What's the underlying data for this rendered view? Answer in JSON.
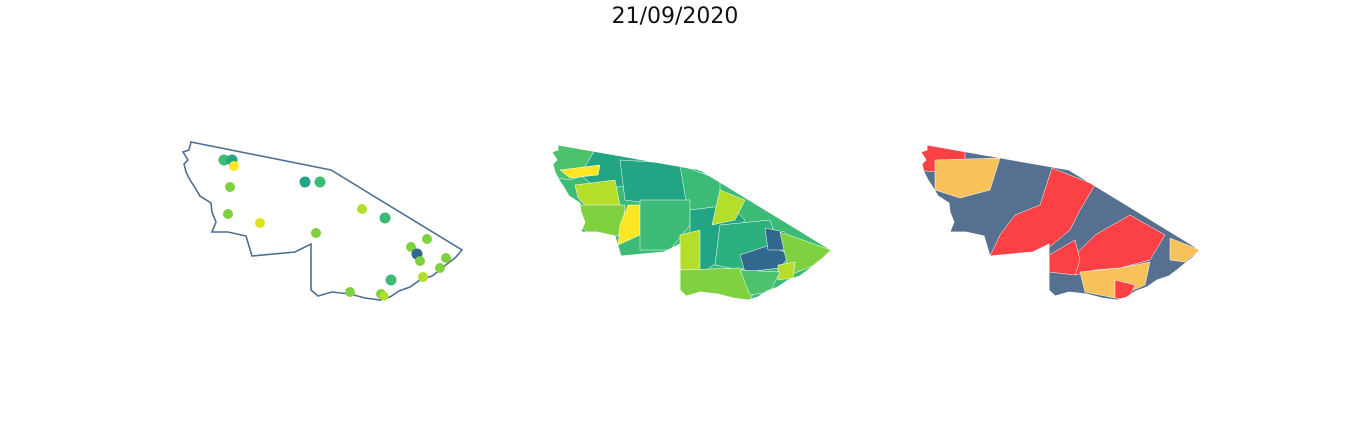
{
  "title": "21/09/2020",
  "colors": {
    "outline": "#4f6f90",
    "viridis_dark": "#31688e",
    "viridis_teal": "#21a585",
    "viridis_green": "#3bbb75",
    "viridis_lightgreen": "#80d13f",
    "viridis_lime": "#b5de2b",
    "viridis_yellow": "#fde725",
    "risk_red": "#fb4145",
    "risk_yellow": "#f9c15a",
    "risk_slate": "#56708f"
  },
  "panels": [
    {
      "name": "point-map"
    },
    {
      "name": "choropleth-continuous"
    },
    {
      "name": "choropleth-categorical"
    }
  ]
}
